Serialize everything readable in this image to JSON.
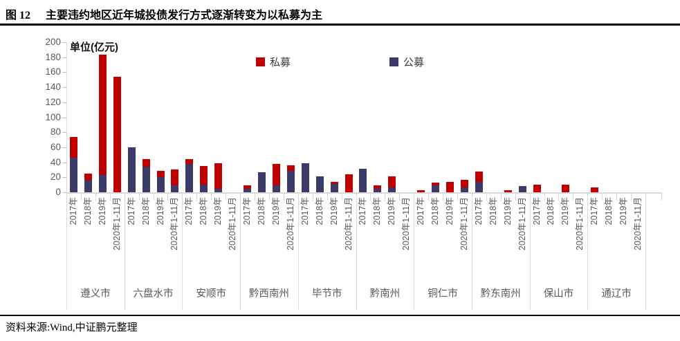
{
  "page": {
    "figure_label": "图 12",
    "title": "主要违约地区近年城投债发行方式逐渐转变为以私募为主",
    "source": "资料来源:Wind,中证鹏元整理"
  },
  "chart_data": {
    "type": "bar",
    "stacked": true,
    "unit_label": "单位(亿元)",
    "ylim": [
      0,
      200
    ],
    "ytick_step": 20,
    "yticks": [
      0,
      20,
      40,
      60,
      80,
      100,
      120,
      140,
      160,
      180,
      200
    ],
    "grid": false,
    "legend_position": "top-center",
    "legend": [
      {
        "name": "私募",
        "key": "private",
        "color": "#C00000"
      },
      {
        "name": "公募",
        "key": "public",
        "color": "#3B3B6A"
      }
    ],
    "stack_order_bottom_to_top": [
      "public",
      "private"
    ],
    "periods": [
      "2017年",
      "2018年",
      "2019年",
      "2020年1-11月"
    ],
    "groups": [
      {
        "name": "遵义市",
        "public": [
          46,
          16,
          23,
          0
        ],
        "private": [
          28,
          9,
          160,
          154
        ]
      },
      {
        "name": "六盘水市",
        "public": [
          60,
          34,
          20,
          9
        ],
        "private": [
          0,
          10,
          9,
          21
        ]
      },
      {
        "name": "安顺市",
        "public": [
          38,
          10,
          5,
          0
        ],
        "private": [
          6,
          25,
          34,
          0
        ]
      },
      {
        "name": "黔西南州",
        "public": [
          5,
          27,
          9,
          29
        ],
        "private": [
          4,
          0,
          29,
          7
        ]
      },
      {
        "name": "毕节市",
        "public": [
          39,
          21,
          11,
          0
        ],
        "private": [
          0,
          0,
          3,
          24
        ]
      },
      {
        "name": "黔南州",
        "public": [
          31,
          5,
          6,
          0
        ],
        "private": [
          0,
          4,
          15,
          0
        ]
      },
      {
        "name": "铜仁市",
        "public": [
          0,
          9,
          0,
          6
        ],
        "private": [
          3,
          4,
          14,
          11
        ]
      },
      {
        "name": "黔东南州",
        "public": [
          14,
          0,
          0,
          8
        ],
        "private": [
          14,
          0,
          3,
          0
        ]
      },
      {
        "name": "保山市",
        "public": [
          0,
          0,
          0,
          0
        ],
        "private": [
          10,
          0,
          10,
          0
        ]
      },
      {
        "name": "通辽市",
        "public": [
          0,
          0,
          0,
          0
        ],
        "private": [
          6,
          0,
          0,
          0
        ]
      }
    ]
  }
}
